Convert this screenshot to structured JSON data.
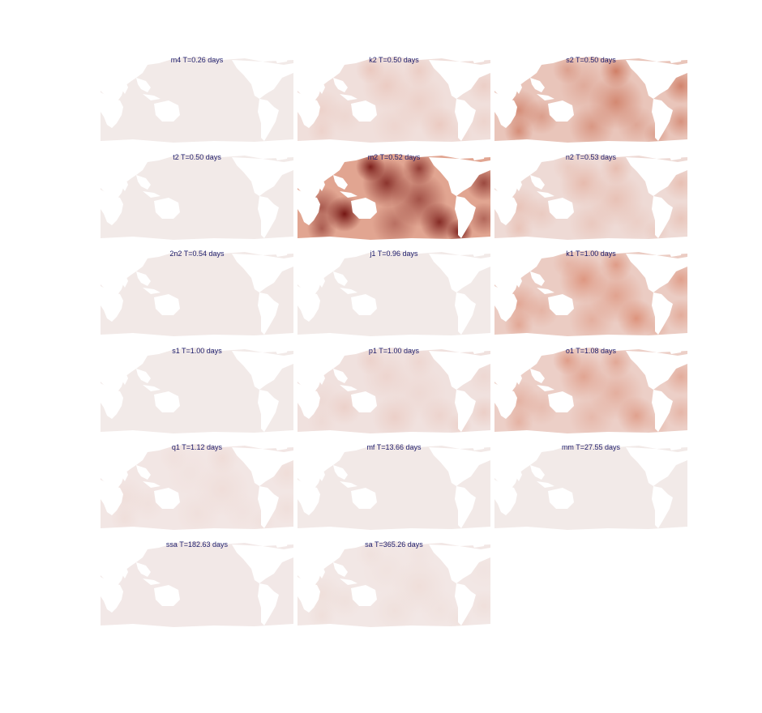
{
  "colors": {
    "ocean_base": "#efe6e4",
    "land": "#ffffff",
    "amplitude_low": "#f3eceb",
    "amplitude_mid": "#d9866b",
    "amplitude_high": "#6e0d0b",
    "title_text": "#1b1b6b"
  },
  "panels": [
    {
      "title": "m4 T=0.26 days",
      "intensity": 0.03
    },
    {
      "title": "k2 T=0.50 days",
      "intensity": 0.18
    },
    {
      "title": "s2 T=0.50 days",
      "intensity": 0.55
    },
    {
      "title": "t2 T=0.50 days",
      "intensity": 0.03
    },
    {
      "title": "m2 T=0.52 days",
      "intensity": 1.0
    },
    {
      "title": "n2 T=0.53 days",
      "intensity": 0.25
    },
    {
      "title": "2n2 T=0.54 days",
      "intensity": 0.04
    },
    {
      "title": "j1 T=0.96 days",
      "intensity": 0.03
    },
    {
      "title": "k1 T=1.00 days",
      "intensity": 0.45
    },
    {
      "title": "s1 T=1.00 days",
      "intensity": 0.03
    },
    {
      "title": "p1 T=1.00 days",
      "intensity": 0.15
    },
    {
      "title": "o1 T=1.08 days",
      "intensity": 0.4
    },
    {
      "title": "q1 T=1.12 days",
      "intensity": 0.08
    },
    {
      "title": "mf T=13.66 days",
      "intensity": 0.04
    },
    {
      "title": "mm T=27.55 days",
      "intensity": 0.03
    },
    {
      "title": "ssa T=182.63 days",
      "intensity": 0.05
    },
    {
      "title": "sa T=365.26 days",
      "intensity": 0.07
    }
  ]
}
